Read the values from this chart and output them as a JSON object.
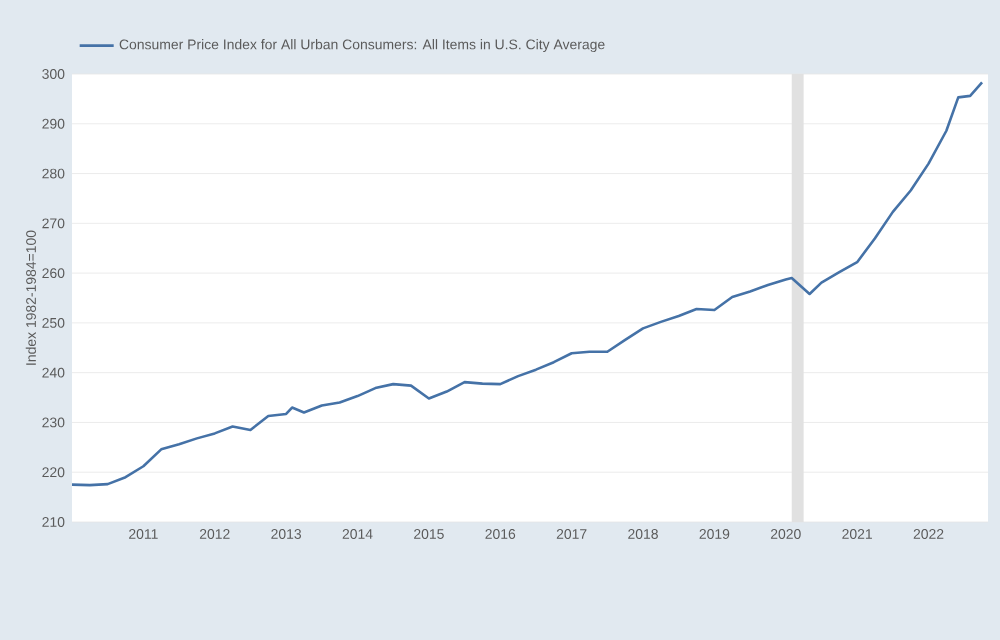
{
  "chart_data": {
    "type": "line",
    "ylabel": "Index 1982-1984=100",
    "legend": "top left",
    "grid": "y",
    "x": [
      "2010-01",
      "2010-04",
      "2010-07",
      "2010-10",
      "2011-01",
      "2011-04",
      "2011-07",
      "2011-10",
      "2012-01",
      "2012-04",
      "2012-07",
      "2012-10",
      "2013-01",
      "2013-02",
      "2013-04",
      "2013-07",
      "2013-10",
      "2014-01",
      "2014-04",
      "2014-07",
      "2014-10",
      "2015-01",
      "2015-04",
      "2015-07",
      "2015-10",
      "2016-01",
      "2016-04",
      "2016-07",
      "2016-10",
      "2017-01",
      "2017-04",
      "2017-07",
      "2017-10",
      "2018-01",
      "2018-04",
      "2018-07",
      "2018-10",
      "2019-01",
      "2019-04",
      "2019-07",
      "2019-10",
      "2020-01",
      "2020-02",
      "2020-05",
      "2020-07",
      "2020-10",
      "2021-01",
      "2021-04",
      "2021-07",
      "2021-10",
      "2022-01",
      "2022-04",
      "2022-06",
      "2022-08",
      "2022-10"
    ],
    "series": [
      {
        "name": "Consumer Price Index for All Urban Consumers: All Items in U.S. City Average",
        "color": "#4572a7",
        "values": [
          217.5,
          217.4,
          217.6,
          219.0,
          221.2,
          224.6,
          225.6,
          226.8,
          227.8,
          229.2,
          228.5,
          231.3,
          231.7,
          233.0,
          232.0,
          233.4,
          234.0,
          235.3,
          236.9,
          237.7,
          237.4,
          234.8,
          236.2,
          238.1,
          237.8,
          237.7,
          239.3,
          240.6,
          242.1,
          243.9,
          244.2,
          244.2,
          246.6,
          248.9,
          250.2,
          251.4,
          252.8,
          252.6,
          255.2,
          256.3,
          257.6,
          258.7,
          259.0,
          255.8,
          258.1,
          260.2,
          262.2,
          267.0,
          272.3,
          276.6,
          282.0,
          288.6,
          295.3,
          295.6,
          298.3
        ]
      }
    ],
    "xlim": [
      "2010-01",
      "2022-11"
    ],
    "xticks": [
      "2011",
      "2012",
      "2013",
      "2014",
      "2015",
      "2016",
      "2017",
      "2018",
      "2019",
      "2020",
      "2021",
      "2022"
    ],
    "ylim": [
      210,
      300
    ],
    "yticks": [
      210,
      220,
      230,
      240,
      250,
      260,
      270,
      280,
      290,
      300
    ],
    "bands": [
      {
        "axis": "x",
        "from": "2020-02",
        "to": "2020-04",
        "color": "#e1e1e1"
      }
    ]
  }
}
